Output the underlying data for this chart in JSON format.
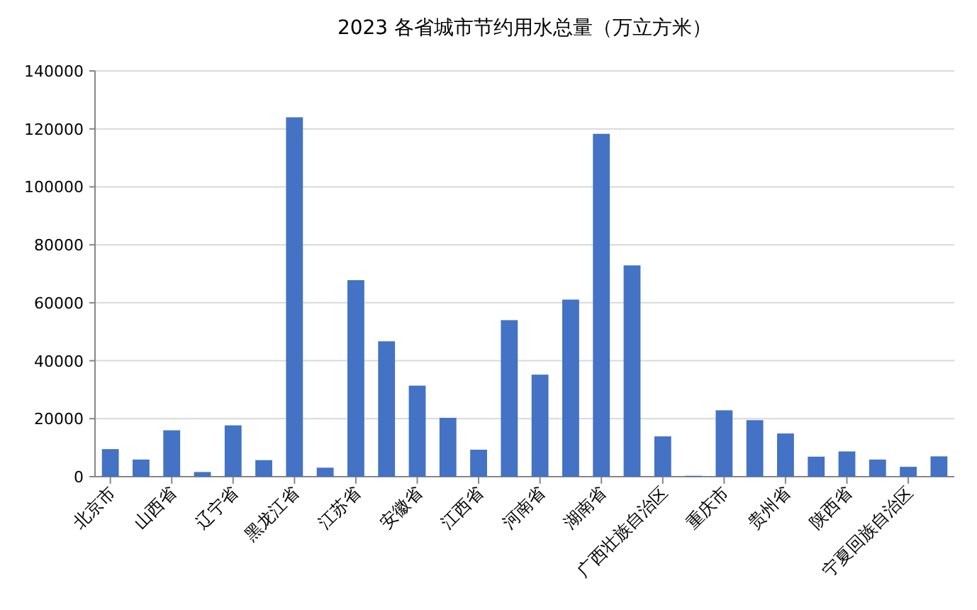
{
  "chart_data": {
    "type": "bar",
    "title": "2023 各省城市节约用水总量（万立方米）",
    "categories": [
      "北京市",
      null,
      "山西省",
      null,
      "辽宁省",
      null,
      "黑龙江省",
      null,
      "江苏省",
      null,
      "安徽省",
      null,
      "江西省",
      null,
      "河南省",
      null,
      "湖南省",
      null,
      "广西壮族自治区",
      null,
      "重庆市",
      null,
      "贵州省",
      null,
      "陕西省",
      null,
      "宁夏回族自治区",
      null
    ],
    "values": [
      9500,
      5900,
      16000,
      1600,
      17700,
      5700,
      124000,
      3100,
      67800,
      46700,
      31400,
      20300,
      9300,
      54000,
      35200,
      61100,
      118300,
      72900,
      13900,
      300,
      22900,
      19500,
      14900,
      6900,
      8700,
      5900,
      3400,
      7000
    ],
    "color": "#4472c4",
    "ylim": [
      0,
      140000
    ],
    "yticks": [
      0,
      20000,
      40000,
      60000,
      80000,
      100000,
      120000,
      140000
    ],
    "grid": "y"
  }
}
